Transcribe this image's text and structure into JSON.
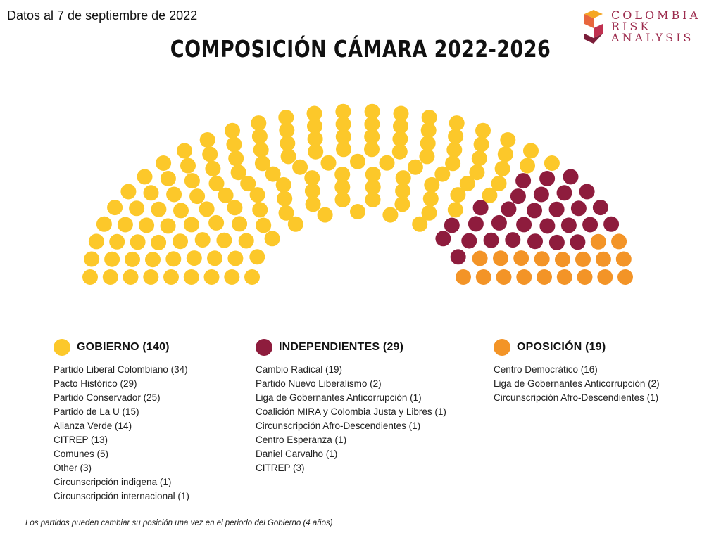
{
  "header": {
    "date_note": "Datos al 7 de septiembre de 2022",
    "title": "COMPOSICIÓN CÁMARA 2022-2026"
  },
  "logo": {
    "lines": [
      "COLOMBIA",
      "RISK",
      "ANALYSIS"
    ],
    "colors": [
      "#f5a623",
      "#e8663d",
      "#c0304f",
      "#7b1e3a"
    ]
  },
  "colors": {
    "gobierno": "#fcc82a",
    "independientes": "#8e1c3d",
    "oposicion": "#f39427"
  },
  "legend": {
    "gobierno": {
      "title": "GOBIERNO (140)",
      "items": [
        "Partido Liberal Colombiano (34)",
        "Pacto Histórico (29)",
        "Partido Conservador (25)",
        "Partido de La U (15)",
        "Alianza Verde (14)",
        "CITREP (13)",
        "Comunes (5)",
        "Other (3)",
        "Circunscripción indigena (1)",
        "Circunscripción internacional (1)"
      ]
    },
    "independientes": {
      "title": "INDEPENDIENTES (29)",
      "items": [
        "Cambio Radical (19)",
        "Partido Nuevo Liberalismo (2)",
        "Liga de Gobernantes Anticorrupción (1)",
        "Coalición MIRA y Colombia Justa y Libres (1)",
        "Circunscripción Afro-Descendientes (1)",
        "Centro Esperanza (1)",
        "Daniel Carvalho (1)",
        "CITREP (3)"
      ]
    },
    "oposicion": {
      "title": "OPOSICIÓN (19)",
      "items": [
        "Centro Democrático (16)",
        "Liga de Gobernantes Anticorrupción (2)",
        "Circunscripción Afro-Descendientes (1)"
      ]
    }
  },
  "footnote": "Los partidos pueden cambiar su posición una vez en el periodo del Gobierno (4 años)",
  "chart_data": {
    "type": "parliament",
    "total_seats": 188,
    "series": [
      {
        "name": "GOBIERNO",
        "value": 140,
        "color": "#fcc82a"
      },
      {
        "name": "INDEPENDIENTES",
        "value": 29,
        "color": "#8e1c3d"
      },
      {
        "name": "OPOSICIÓN",
        "value": 19,
        "color": "#f39427"
      }
    ]
  }
}
